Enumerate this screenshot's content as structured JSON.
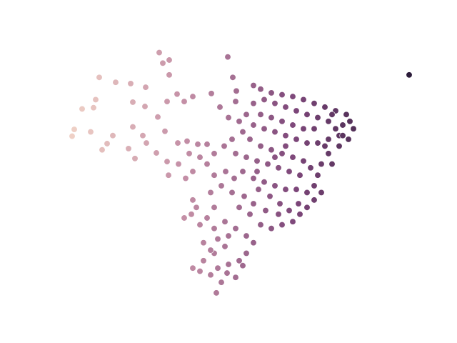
{
  "chart_data": {
    "type": "scatter",
    "x": [
      -61.7,
      -60.3,
      -61.2,
      -52.1,
      -60.3,
      -70.1,
      -67.8,
      -65.7,
      -63.6,
      -70.6,
      -65.4,
      -72.5,
      -70.9,
      -63.7,
      -60.6,
      -59.2,
      -73.6,
      -73.9,
      -71.3,
      -68.2,
      -69.0,
      -69.7,
      -65.4,
      -64.0,
      -63.5,
      -66.0,
      -65.1,
      -61.9,
      -60.9,
      -62.1,
      -60.6,
      -60.4,
      -59.1,
      -57.8,
      -56.3,
      -55.0,
      -58.2,
      -57.0,
      -54.4,
      -51.4,
      -50.9,
      -52.6,
      -53.2,
      -51.0,
      -48.5,
      -47.5,
      -46.0,
      -44.5,
      -43.0,
      -41.5,
      -40.0,
      -38.5,
      -37.0,
      -35.5,
      -35.0,
      -34.5,
      -35.2,
      -36.5,
      -38.0,
      -39.0,
      -39.5,
      -40.0,
      -39.0,
      -37.0,
      -38.0,
      -39.5,
      -41.0,
      -42.5,
      -44.0,
      -45.5,
      -47.0,
      -48.5,
      -49.5,
      -48.5,
      -47.0,
      -45.5,
      -44.0,
      -42.5,
      -41.0,
      -39.5,
      -38.0,
      -36.5,
      -36.0,
      -37.5,
      -40.0,
      -41.5,
      -43.0,
      -44.5,
      -46.0,
      -47.5,
      -49.0,
      -47.5,
      -46.0,
      -44.5,
      -43.0,
      -41.5,
      -40.5,
      -42.0,
      -43.5,
      -45.0,
      -46.5,
      -48.0,
      -49.5,
      -51.0,
      -50.0,
      -48.5,
      -47.0,
      -45.5,
      -44.0,
      -42.5,
      -41.0,
      -40.0,
      -41.0,
      -42.0,
      -43.0,
      -44.5,
      -46.0,
      -47.5,
      -49.0,
      -50.5,
      -51.5,
      -53.0,
      -54.0,
      -54.5,
      -54.0,
      -55.0,
      -56.0,
      -54.0,
      -52.5,
      -51.0,
      -49.5,
      -48.5,
      -49.5,
      -50.5,
      -52.0,
      -53.5,
      -54.5,
      -56.0,
      -57.0,
      -55.5,
      -54.0,
      -52.5,
      -53.5,
      -52.0,
      -53.0,
      -53.7,
      -52.2,
      -51.0,
      -50.0,
      -55.5,
      -54.5,
      -57.2,
      -58.2,
      -56.5,
      -57.0,
      -58.0,
      -57.0,
      -56.0,
      -55.0,
      -54.0,
      -59.0,
      -57.5,
      -51.5,
      -50.0,
      -50.5,
      -52.0,
      -47.8,
      -46.2,
      -44.8,
      -43.5,
      -42.2,
      -45.0,
      -46.8,
      -48.5,
      -49.8,
      -51.2,
      -52.4,
      -48.0,
      -45.5,
      -44.0,
      -38.5,
      -37.5,
      -36.0,
      -26.7
    ],
    "y": [
      5.2,
      4.0,
      3.5,
      4.5,
      1.6,
      1.2,
      0.4,
      0.2,
      -0.4,
      -2.4,
      -2.8,
      -3.9,
      -3.7,
      -3.5,
      -2.7,
      -1.5,
      -7.2,
      -8.3,
      -7.6,
      -8.2,
      -9.5,
      -10.5,
      -6.8,
      -8.2,
      -9.4,
      -10.3,
      -11.9,
      -5.2,
      -7.5,
      -11.0,
      -12.4,
      -14.6,
      -9.4,
      -9.1,
      -9.6,
      -9.6,
      -2.7,
      -1.9,
      -1.4,
      1.2,
      -1.0,
      -9.9,
      -3.6,
      -2.7,
      -0.1,
      -0.7,
      -1.3,
      -1.6,
      -1.9,
      -2.4,
      -3.0,
      -3.6,
      -4.2,
      -4.8,
      -5.9,
      -7.1,
      -8.8,
      -9.9,
      -11.1,
      -12.8,
      -14.6,
      -16.3,
      -17.4,
      -7.1,
      -5.9,
      -5.3,
      -4.8,
      -4.2,
      -3.6,
      -3.0,
      -2.4,
      -3.0,
      -4.8,
      -6.5,
      -7.1,
      -7.6,
      -8.2,
      -8.8,
      -9.4,
      -9.4,
      -8.8,
      -8.2,
      -6.5,
      -4.8,
      -7.1,
      -7.1,
      -6.5,
      -5.9,
      -5.3,
      -4.8,
      -8.8,
      -9.9,
      -10.5,
      -11.1,
      -11.7,
      -12.3,
      -13.4,
      -14.6,
      -14.0,
      -13.4,
      -12.8,
      -12.3,
      -11.7,
      -11.1,
      -14.0,
      -15.1,
      -15.7,
      -16.3,
      -16.9,
      -16.9,
      -17.4,
      -18.6,
      -19.8,
      -20.9,
      -22.1,
      -22.6,
      -23.2,
      -22.6,
      -20.9,
      -19.8,
      -17.4,
      -16.3,
      -14.6,
      -17.4,
      -19.8,
      -21.5,
      -22.6,
      -23.2,
      -22.1,
      -23.2,
      -24.4,
      -25.5,
      -27.2,
      -28.4,
      -29.0,
      -29.6,
      -30.7,
      -30.1,
      -29.6,
      -28.4,
      -27.2,
      -26.1,
      -24.9,
      -24.4,
      -31.9,
      -33.6,
      -30.4,
      -31.1,
      -29.2,
      -25.5,
      -26.7,
      -20.9,
      -21.5,
      -19.8,
      -18.6,
      -15.1,
      -14.0,
      -11.7,
      -12.8,
      -11.1,
      -12.8,
      -11.1,
      -8.8,
      -7.6,
      -5.9,
      -5.3,
      -16.9,
      -18.0,
      -19.2,
      -20.3,
      -19.2,
      -20.9,
      -20.3,
      -19.2,
      -18.0,
      -15.1,
      -14.0,
      -14.0,
      -11.7,
      -9.9,
      -9.9,
      -12.8,
      -8.2,
      1.6
    ],
    "xlim": [
      -76,
      -26.4
    ],
    "ylim": [
      -35,
      7
    ],
    "axes_visible": false,
    "palette": [
      "#efd0c6",
      "#c48fa6",
      "#7c4679",
      "#2c1c3a"
    ],
    "edgecolor": "#ffffff"
  }
}
